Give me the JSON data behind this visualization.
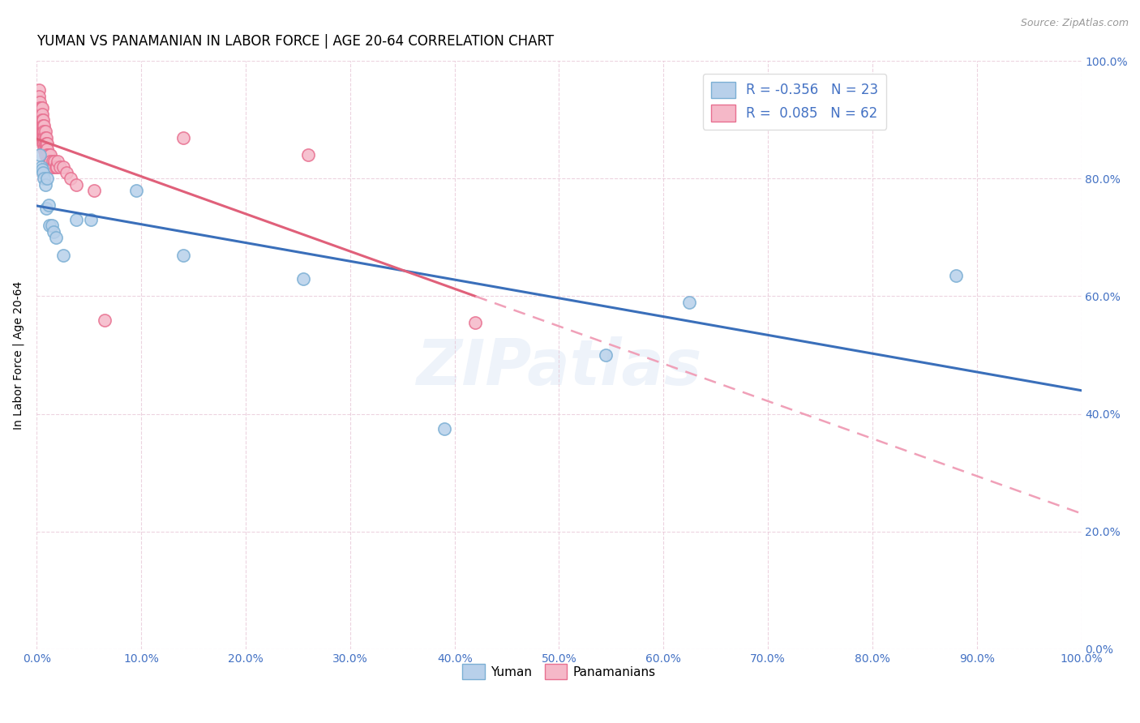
{
  "title": "YUMAN VS PANAMANIAN IN LABOR FORCE | AGE 20-64 CORRELATION CHART",
  "source": "Source: ZipAtlas.com",
  "ylabel": "In Labor Force | Age 20-64",
  "xlim": [
    0,
    1.0
  ],
  "ylim": [
    0,
    1.0
  ],
  "x_ticks": [
    0.0,
    0.1,
    0.2,
    0.3,
    0.4,
    0.5,
    0.6,
    0.7,
    0.8,
    0.9,
    1.0
  ],
  "y_ticks": [
    0.0,
    0.2,
    0.4,
    0.6,
    0.8,
    1.0
  ],
  "watermark": "ZIPatlas",
  "legend": {
    "yuman_label": "Yuman",
    "pana_label": "Panamanians",
    "yuman_R": "-0.356",
    "yuman_N": "23",
    "pana_R": "0.085",
    "pana_N": "62"
  },
  "yuman_color": "#b8d0ea",
  "yuman_edge_color": "#7bafd4",
  "yuman_line_color": "#3a6fba",
  "pana_color": "#f5b8c8",
  "pana_edge_color": "#e87090",
  "pana_line_color": "#e0607a",
  "pana_dash_color": "#f0a0b8",
  "background_color": "#ffffff",
  "yuman_x": [
    0.003,
    0.004,
    0.005,
    0.006,
    0.007,
    0.008,
    0.009,
    0.01,
    0.011,
    0.012,
    0.014,
    0.016,
    0.018,
    0.025,
    0.038,
    0.052,
    0.095,
    0.14,
    0.255,
    0.39,
    0.545,
    0.625,
    0.88
  ],
  "yuman_y": [
    0.84,
    0.82,
    0.815,
    0.81,
    0.8,
    0.79,
    0.75,
    0.8,
    0.755,
    0.72,
    0.72,
    0.71,
    0.7,
    0.67,
    0.73,
    0.73,
    0.78,
    0.67,
    0.63,
    0.375,
    0.5,
    0.59,
    0.635
  ],
  "pana_x": [
    0.002,
    0.002,
    0.003,
    0.003,
    0.003,
    0.003,
    0.004,
    0.004,
    0.004,
    0.004,
    0.005,
    0.005,
    0.005,
    0.005,
    0.005,
    0.005,
    0.006,
    0.006,
    0.006,
    0.006,
    0.006,
    0.007,
    0.007,
    0.007,
    0.007,
    0.007,
    0.007,
    0.008,
    0.008,
    0.008,
    0.008,
    0.008,
    0.009,
    0.009,
    0.009,
    0.01,
    0.01,
    0.01,
    0.01,
    0.011,
    0.012,
    0.012,
    0.013,
    0.013,
    0.014,
    0.015,
    0.015,
    0.016,
    0.017,
    0.018,
    0.019,
    0.02,
    0.022,
    0.025,
    0.028,
    0.032,
    0.038,
    0.055,
    0.065,
    0.14,
    0.26,
    0.42
  ],
  "pana_y": [
    0.95,
    0.94,
    0.93,
    0.92,
    0.91,
    0.9,
    0.92,
    0.91,
    0.9,
    0.89,
    0.92,
    0.91,
    0.9,
    0.89,
    0.88,
    0.87,
    0.9,
    0.89,
    0.88,
    0.87,
    0.86,
    0.89,
    0.88,
    0.87,
    0.86,
    0.86,
    0.85,
    0.88,
    0.87,
    0.86,
    0.85,
    0.84,
    0.87,
    0.86,
    0.85,
    0.86,
    0.85,
    0.84,
    0.83,
    0.84,
    0.83,
    0.82,
    0.84,
    0.83,
    0.82,
    0.83,
    0.82,
    0.82,
    0.83,
    0.82,
    0.82,
    0.83,
    0.82,
    0.82,
    0.81,
    0.8,
    0.79,
    0.78,
    0.56,
    0.87,
    0.84,
    0.555
  ],
  "yuman_trend_x0": 0.0,
  "yuman_trend_x1": 1.0,
  "pana_trend_solid_x0": 0.0,
  "pana_trend_solid_x1": 0.42,
  "pana_trend_dash_x0": 0.42,
  "pana_trend_dash_x1": 1.0
}
